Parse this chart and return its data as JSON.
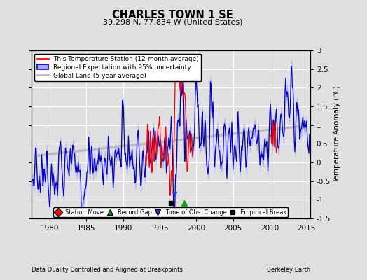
{
  "title": "CHARLES TOWN 1 SE",
  "subtitle": "39.298 N, 77.834 W (United States)",
  "xlabel_left": "Data Quality Controlled and Aligned at Breakpoints",
  "xlabel_right": "Berkeley Earth",
  "ylabel": "Temperature Anomaly (°C)",
  "xlim": [
    1977.5,
    2015.5
  ],
  "ylim": [
    -1.5,
    3.0
  ],
  "yticks": [
    -1.5,
    -1.0,
    -0.5,
    0.0,
    0.5,
    1.0,
    1.5,
    2.0,
    2.5,
    3.0
  ],
  "xticks": [
    1980,
    1985,
    1990,
    1995,
    2000,
    2005,
    2010,
    2015
  ],
  "bg_color": "#e0e0e0",
  "plot_bg_color": "#e0e0e0",
  "uncertainty_color": "#aaaaff",
  "regional_color": "#0000cc",
  "station_color": "#ff0000",
  "global_color": "#bbbbbb",
  "legend_labels": [
    "This Temperature Station (12-month average)",
    "Regional Expectation with 95% uncertainty",
    "Global Land (5-year average)"
  ],
  "empirical_break_x": 1996.5,
  "record_gap_x": 1998.3,
  "obs_change_x": 1997.0
}
